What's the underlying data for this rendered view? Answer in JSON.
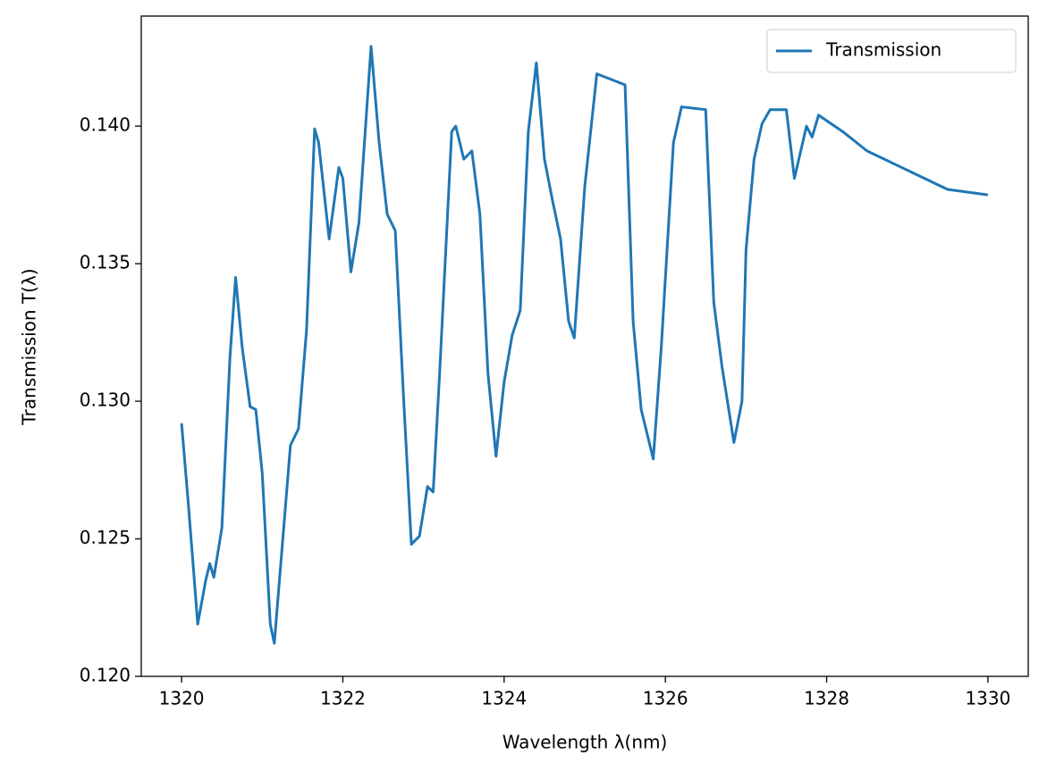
{
  "chart_data": {
    "type": "line",
    "xlabel": "Wavelength λ(nm)",
    "ylabel": "Transmission T(λ)",
    "x": [
      1320.0,
      1320.08,
      1320.15,
      1320.2,
      1320.3,
      1320.35,
      1320.4,
      1320.5,
      1320.6,
      1320.67,
      1320.75,
      1320.85,
      1320.92,
      1321.0,
      1321.1,
      1321.15,
      1321.25,
      1321.35,
      1321.45,
      1321.55,
      1321.65,
      1321.7,
      1321.83,
      1321.95,
      1322.0,
      1322.1,
      1322.2,
      1322.35,
      1322.45,
      1322.55,
      1322.65,
      1322.75,
      1322.85,
      1322.95,
      1323.05,
      1323.12,
      1323.2,
      1323.35,
      1323.4,
      1323.5,
      1323.6,
      1323.7,
      1323.8,
      1323.9,
      1324.0,
      1324.1,
      1324.2,
      1324.3,
      1324.4,
      1324.5,
      1324.6,
      1324.7,
      1324.8,
      1324.87,
      1325.0,
      1325.15,
      1325.5,
      1325.6,
      1325.7,
      1325.85,
      1325.95,
      1326.1,
      1326.2,
      1326.5,
      1326.6,
      1326.7,
      1326.85,
      1326.95,
      1327.0,
      1327.1,
      1327.2,
      1327.3,
      1327.5,
      1327.6,
      1327.75,
      1327.82,
      1327.9,
      1328.2,
      1328.5,
      1329.0,
      1329.5,
      1330.0
    ],
    "series": [
      {
        "name": "Transmission",
        "color": "#1f77b4",
        "values": [
          0.1292,
          0.1264,
          0.1238,
          0.1219,
          0.1235,
          0.1241,
          0.1236,
          0.1254,
          0.1316,
          0.1345,
          0.132,
          0.1298,
          0.1297,
          0.1274,
          0.1219,
          0.1212,
          0.1248,
          0.1284,
          0.129,
          0.1326,
          0.1399,
          0.1394,
          0.1359,
          0.1385,
          0.1381,
          0.1347,
          0.1365,
          0.1429,
          0.1394,
          0.1368,
          0.1362,
          0.1303,
          0.1248,
          0.1251,
          0.1269,
          0.1267,
          0.131,
          0.1398,
          0.14,
          0.1388,
          0.1391,
          0.1368,
          0.131,
          0.128,
          0.1307,
          0.1324,
          0.1333,
          0.1398,
          0.1423,
          0.1388,
          0.1373,
          0.1359,
          0.1329,
          0.1323,
          0.1378,
          0.1419,
          0.1415,
          0.1329,
          0.1297,
          0.1279,
          0.132,
          0.1394,
          0.1407,
          0.1406,
          0.1336,
          0.1313,
          0.1285,
          0.13,
          0.1355,
          0.1388,
          0.1401,
          0.1406,
          0.1406,
          0.1381,
          0.14,
          0.1396,
          0.1404,
          0.1398,
          0.1391,
          0.1384,
          0.1377,
          0.1375
        ]
      }
    ],
    "xlim": [
      1319.5,
      1330.5
    ],
    "ylim": [
      0.12,
      0.144
    ],
    "xticks": [
      1320,
      1322,
      1324,
      1326,
      1328,
      1330
    ],
    "yticks": [
      {
        "value": 0.12,
        "label": "0.120"
      },
      0.125,
      {
        "value": 0.13,
        "label": "0.130"
      },
      0.135,
      {
        "value": 0.14,
        "label": "0.140"
      }
    ],
    "legend": "upper right",
    "grid": false
  }
}
